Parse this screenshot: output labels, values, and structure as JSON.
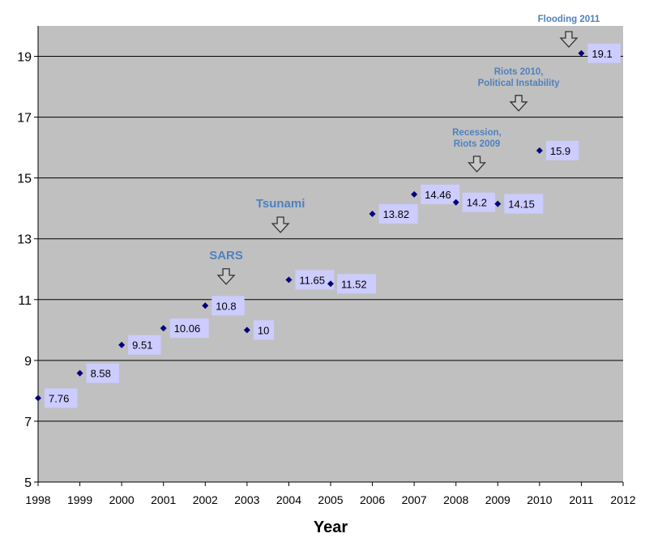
{
  "chart_data": {
    "type": "scatter",
    "title": "",
    "xlabel": "Year",
    "ylabel": "",
    "xlim": [
      1998,
      2012
    ],
    "ylim": [
      5,
      20
    ],
    "x_ticks": [
      "1998",
      "1999",
      "2000",
      "2001",
      "2002",
      "2003",
      "2004",
      "2005",
      "2006",
      "2007",
      "2008",
      "2009",
      "2010",
      "2011",
      "2012"
    ],
    "y_ticks": [
      "5",
      "7",
      "9",
      "11",
      "13",
      "15",
      "17",
      "19"
    ],
    "grid": "horizontal",
    "series": [
      {
        "x": [
          1998,
          1999,
          2000,
          2001,
          2002,
          2003,
          2004,
          2005,
          2006,
          2007,
          2008,
          2009,
          2010,
          2011
        ],
        "values": [
          7.76,
          8.58,
          9.51,
          10.06,
          10.8,
          10,
          11.65,
          11.52,
          13.82,
          14.46,
          14.2,
          14.15,
          15.9,
          19.1
        ],
        "labels": [
          "7.76",
          "8.58",
          "9.51",
          "10.06",
          "10.8",
          "10",
          "11.65",
          "11.52",
          "13.82",
          "14.46",
          "14.2",
          "14.15",
          "15.9",
          "19.1"
        ]
      }
    ],
    "annotations": [
      {
        "lines": [
          "SARS"
        ],
        "x": 2002.5,
        "y": 11.8,
        "large": true
      },
      {
        "lines": [
          "Tsunami"
        ],
        "x": 2003.8,
        "y": 13.5,
        "large": true
      },
      {
        "lines": [
          "Recession,",
          "Riots 2009"
        ],
        "x": 2008.5,
        "y": 15.5,
        "large": false
      },
      {
        "lines": [
          "Riots 2010,",
          "Political Instability"
        ],
        "x": 2009.5,
        "y": 17.5,
        "large": false
      },
      {
        "lines": [
          "Flooding 2011"
        ],
        "x": 2010.7,
        "y": 19.6,
        "large": false
      }
    ],
    "colors": {
      "plot_bg": "#c0c0c0",
      "marker": "#000080",
      "label_bg": "#ccccff",
      "annotation_text": "#4f81bd",
      "grid": "#000000"
    }
  }
}
